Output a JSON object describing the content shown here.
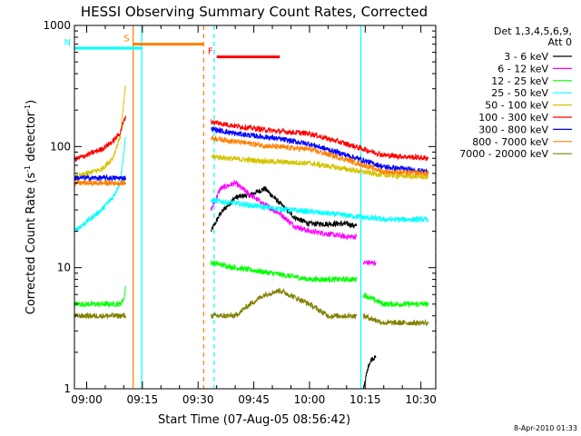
{
  "chart_data": {
    "type": "line",
    "title": "HESSI Observing Summary Count Rates, Corrected",
    "xlabel": "Start Time (07-Aug-05 08:56:42)",
    "ylabel": "Corrected Count Rate (s⁻¹ detector⁻¹)",
    "ylabel_parts": [
      "Corrected Count Rate (s",
      "-1",
      " detector",
      "-1",
      ")"
    ],
    "yscale": "log",
    "xlim": [
      "08:56:42",
      "10:34:00"
    ],
    "ylim": [
      1,
      1000
    ],
    "xticks": [
      "09:00",
      "09:15",
      "09:30",
      "09:45",
      "10:00",
      "10:15",
      "10:30"
    ],
    "yticks": [
      "1",
      "10",
      "100",
      "1000"
    ],
    "legend_position": "right",
    "legend_header": [
      "Det 1,3,4,5,6,9,",
      "Att 0"
    ],
    "date_stamp": "8-Apr-2010 01:33",
    "annotations": [
      {
        "label": "S",
        "color": "#ff8000",
        "span": [
          "09:12:30",
          "09:31:30"
        ],
        "level": 700
      },
      {
        "label": "N",
        "color": "#00ffff",
        "span": [
          "08:56:42",
          "09:14:50"
        ],
        "level": 650
      },
      {
        "label": "F",
        "color": "#ff0000",
        "span": [
          "09:35:00",
          "09:52:00"
        ],
        "level": 550
      }
    ],
    "night_intervals": [
      {
        "start": "09:14:50",
        "end": "09:34:20",
        "color": "#00ffff"
      },
      {
        "start": "10:13:50",
        "end": "10:34:00",
        "color": "#00ffff"
      }
    ],
    "saa_markers": [
      {
        "time": "09:12:30",
        "color": "#ff8000"
      },
      {
        "time": "09:31:30",
        "color": "#ff8000"
      }
    ],
    "series": [
      {
        "name": "3 - 6 keV",
        "color": "#000000",
        "segments": [
          {
            "x": [
              "09:33:30",
              "09:36:00",
              "09:40:00",
              "09:44:00",
              "09:48:00",
              "09:52:00",
              "09:56:00",
              "10:00:00",
              "10:05:00",
              "10:10:00",
              "10:12:40"
            ],
            "y": [
              20,
              28,
              38,
              40,
              45,
              34,
              26,
              23,
              23,
              23,
              22
            ]
          },
          {
            "x": [
              "10:14:30",
              "10:16:00",
              "10:17:00",
              "10:17:50"
            ],
            "y": [
              1,
              1.6,
              1.8,
              1.8
            ]
          }
        ]
      },
      {
        "name": "6 - 12 keV",
        "color": "#ff00ff",
        "segments": [
          {
            "x": [
              "09:33:30",
              "09:36:00",
              "09:40:00",
              "09:44:00",
              "09:48:00",
              "09:52:00",
              "09:56:00",
              "10:00:00",
              "10:05:00",
              "10:10:00",
              "10:12:40"
            ],
            "y": [
              30,
              45,
              50,
              40,
              33,
              28,
              22,
              20,
              19,
              18,
              18
            ]
          },
          {
            "x": [
              "10:14:30",
              "10:16:00",
              "10:17:50"
            ],
            "y": [
              11,
              11,
              11
            ]
          }
        ]
      },
      {
        "name": "12 - 25 keV",
        "color": "#00ff00",
        "segments": [
          {
            "x": [
              "08:56:42",
              "09:05:00",
              "09:09:00",
              "09:10:00",
              "09:10:30"
            ],
            "y": [
              5,
              5,
              5,
              5.5,
              7
            ]
          },
          {
            "x": [
              "09:33:30",
              "09:40:00",
              "09:50:00",
              "10:00:00",
              "10:10:00",
              "10:12:40"
            ],
            "y": [
              11,
              10,
              9,
              8,
              8,
              8
            ]
          },
          {
            "x": [
              "10:14:30",
              "10:20:00",
              "10:25:00",
              "10:30:00",
              "10:32:00"
            ],
            "y": [
              6,
              5,
              5,
              5,
              5
            ]
          }
        ]
      },
      {
        "name": "25 - 50 keV",
        "color": "#00ffff",
        "segments": [
          {
            "x": [
              "08:56:42",
              "09:00:00",
              "09:04:00",
              "09:07:00",
              "09:09:00",
              "09:10:30"
            ],
            "y": [
              20,
              24,
              30,
              38,
              50,
              120
            ]
          },
          {
            "x": [
              "09:33:30",
              "09:40:00",
              "09:50:00",
              "10:00:00",
              "10:10:00",
              "10:20:00",
              "10:32:00"
            ],
            "y": [
              36,
              34,
              31,
              29,
              27,
              25,
              25
            ]
          }
        ]
      },
      {
        "name": "50 - 100 keV",
        "color": "#d4c400",
        "segments": [
          {
            "x": [
              "08:56:42",
              "09:00:00",
              "09:04:00",
              "09:07:00",
              "09:09:00",
              "09:10:30"
            ],
            "y": [
              55,
              60,
              65,
              80,
              120,
              320
            ]
          },
          {
            "x": [
              "09:33:30",
              "09:40:00",
              "09:50:00",
              "10:00:00",
              "10:10:00",
              "10:20:00",
              "10:32:00"
            ],
            "y": [
              83,
              79,
              75,
              73,
              65,
              58,
              56
            ]
          }
        ]
      },
      {
        "name": "100 - 300 keV",
        "color": "#ff0000",
        "segments": [
          {
            "x": [
              "08:56:42",
              "09:00:00",
              "09:04:00",
              "09:07:00",
              "09:09:00",
              "09:10:30"
            ],
            "y": [
              78,
              85,
              95,
              110,
              130,
              180
            ]
          },
          {
            "x": [
              "09:33:30",
              "09:40:00",
              "09:50:00",
              "10:00:00",
              "10:10:00",
              "10:20:00",
              "10:32:00"
            ],
            "y": [
              160,
              148,
              135,
              128,
              105,
              85,
              80
            ]
          }
        ]
      },
      {
        "name": "300 - 800 keV",
        "color": "#0000ff",
        "segments": [
          {
            "x": [
              "08:56:42",
              "09:05:00",
              "09:10:30"
            ],
            "y": [
              55,
              55,
              55
            ]
          },
          {
            "x": [
              "09:33:30",
              "09:40:00",
              "09:50:00",
              "10:00:00",
              "10:10:00",
              "10:20:00",
              "10:32:00"
            ],
            "y": [
              140,
              128,
              118,
              105,
              85,
              68,
              62
            ]
          }
        ]
      },
      {
        "name": "800 - 7000 keV",
        "color": "#ff8000",
        "segments": [
          {
            "x": [
              "08:56:42",
              "09:05:00",
              "09:10:30"
            ],
            "y": [
              50,
              50,
              50
            ]
          },
          {
            "x": [
              "09:33:30",
              "09:40:00",
              "09:50:00",
              "10:00:00",
              "10:10:00",
              "10:20:00",
              "10:32:00"
            ],
            "y": [
              118,
              110,
              100,
              95,
              78,
              62,
              60
            ]
          }
        ]
      },
      {
        "name": "7000 - 20000 keV",
        "color": "#808000",
        "segments": [
          {
            "x": [
              "08:56:42",
              "09:05:00",
              "09:10:30"
            ],
            "y": [
              4,
              4,
              4
            ]
          },
          {
            "x": [
              "09:33:30",
              "09:40:00",
              "09:44:00",
              "09:48:00",
              "09:52:00",
              "10:00:00",
              "10:05:00",
              "10:10:00",
              "10:12:40"
            ],
            "y": [
              4,
              4,
              5,
              6,
              6.5,
              5,
              4,
              4,
              4
            ]
          },
          {
            "x": [
              "10:14:30",
              "10:20:00",
              "10:25:00",
              "10:32:00"
            ],
            "y": [
              4,
              3.5,
              3.5,
              3.5
            ]
          }
        ]
      }
    ]
  }
}
